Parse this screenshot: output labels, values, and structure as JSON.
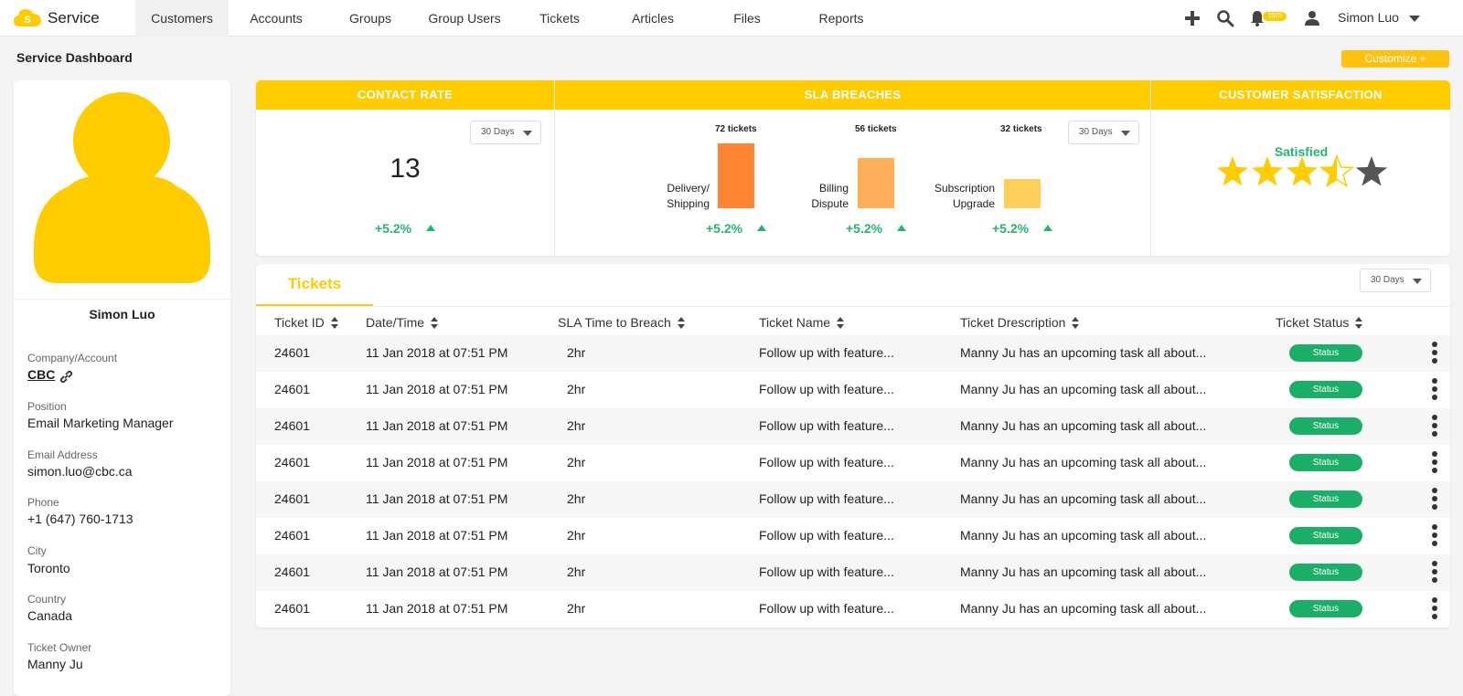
{
  "app": {
    "brand": "Service"
  },
  "nav": {
    "items": [
      {
        "label": "Customers",
        "active": true
      },
      {
        "label": "Accounts"
      },
      {
        "label": "Groups"
      },
      {
        "label": "Group Users"
      },
      {
        "label": "Tickets"
      },
      {
        "label": "Articles"
      },
      {
        "label": "Files"
      },
      {
        "label": "Reports"
      }
    ],
    "icons": [
      "plus-icon",
      "search-icon",
      "bell-icon",
      "user-icon"
    ],
    "notification_count": "1520",
    "user_name": "Simon Luo"
  },
  "page": {
    "title": "Service Dashboard",
    "customize_label": "Customize +"
  },
  "profile": {
    "name": "Simon Luo",
    "fields": [
      {
        "label": "Company/Account",
        "value": "CBC"
      },
      {
        "label": "Position",
        "value": "Email Marketing Manager"
      },
      {
        "label": "Email Address",
        "value": "simon.luo@cbc.ca"
      },
      {
        "label": "Phone",
        "value": "+1 (647) 760-1713"
      },
      {
        "label": "City",
        "value": "Toronto"
      },
      {
        "label": "Country",
        "value": "Canada"
      },
      {
        "label": "Ticket Owner",
        "value": "Manny Ju"
      }
    ]
  },
  "metrics": {
    "contact_rate": {
      "title": "CONTACT RATE",
      "range": "30 Days",
      "value": "13",
      "trend": "+5.2%"
    },
    "sla_breaches": {
      "title": "SLA BREACHES",
      "range": "30 Days",
      "bars": [
        {
          "label_line1": "Delivery/",
          "label_line2": "Shipping",
          "tickets": "72 tickets",
          "count": 72,
          "trend": "+5.2%",
          "color": "#ff8533"
        },
        {
          "label_line1": "Billing",
          "label_line2": "Dispute",
          "tickets": "56 tickets",
          "count": 56,
          "trend": "+5.2%",
          "color": "#ffae5a"
        },
        {
          "label_line1": "Subscription",
          "label_line2": "Upgrade",
          "tickets": "32 tickets",
          "count": 32,
          "trend": "+5.2%",
          "color": "#ffcf5c"
        }
      ]
    },
    "customer_satisfaction": {
      "title": "CUSTOMER SATISFACTION",
      "rating": 3.5,
      "max": 5,
      "label": "Satisfied"
    }
  },
  "tickets": {
    "tab_label": "Tickets",
    "range": "30 Days",
    "columns": [
      "Ticket ID",
      "Date/Time",
      "SLA Time to Breach",
      "Ticket Name",
      "Ticket Drescription",
      "Ticket Status"
    ],
    "rows": [
      {
        "id": "24601",
        "datetime": "11 Jan 2018 at 07:51 PM",
        "sla": "2hr",
        "name": "Follow up with feature...",
        "description": "Manny Ju has an upcoming task all about...",
        "status": "Status"
      },
      {
        "id": "24601",
        "datetime": "11 Jan 2018 at 07:51 PM",
        "sla": "2hr",
        "name": "Follow up with feature...",
        "description": "Manny Ju has an upcoming task all about...",
        "status": "Status"
      },
      {
        "id": "24601",
        "datetime": "11 Jan 2018 at 07:51 PM",
        "sla": "2hr",
        "name": "Follow up with feature...",
        "description": "Manny Ju has an upcoming task all about...",
        "status": "Status"
      },
      {
        "id": "24601",
        "datetime": "11 Jan 2018 at 07:51 PM",
        "sla": "2hr",
        "name": "Follow up with feature...",
        "description": "Manny Ju has an upcoming task all about...",
        "status": "Status"
      },
      {
        "id": "24601",
        "datetime": "11 Jan 2018 at 07:51 PM",
        "sla": "2hr",
        "name": "Follow up with feature...",
        "description": "Manny Ju has an upcoming task all about...",
        "status": "Status"
      },
      {
        "id": "24601",
        "datetime": "11 Jan 2018 at 07:51 PM",
        "sla": "2hr",
        "name": "Follow up with feature...",
        "description": "Manny Ju has an upcoming task all about...",
        "status": "Status"
      },
      {
        "id": "24601",
        "datetime": "11 Jan 2018 at 07:51 PM",
        "sla": "2hr",
        "name": "Follow up with feature...",
        "description": "Manny Ju has an upcoming task all about...",
        "status": "Status"
      },
      {
        "id": "24601",
        "datetime": "11 Jan 2018 at 07:51 PM",
        "sla": "2hr",
        "name": "Follow up with feature...",
        "description": "Manny Ju has an upcoming task all about...",
        "status": "Status"
      }
    ]
  },
  "colors": {
    "accent": "#ffcc00",
    "positive": "#22b573",
    "status": "#1aae66",
    "star_empty": "#555555"
  }
}
